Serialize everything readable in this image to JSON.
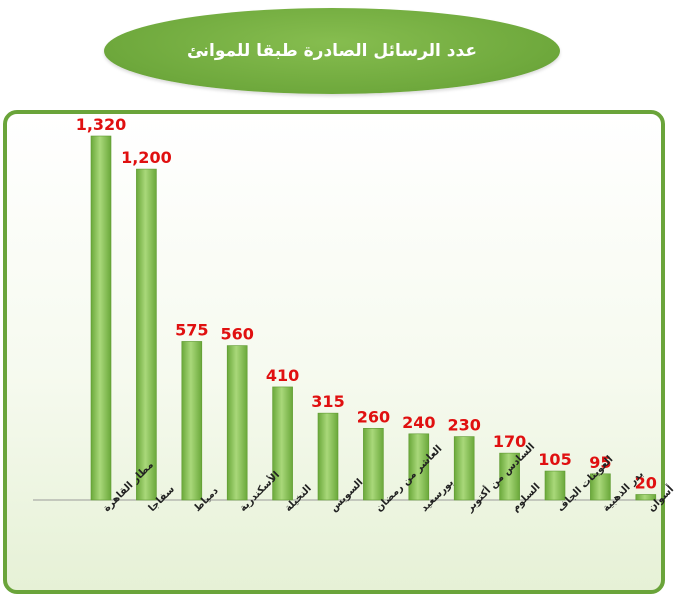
{
  "title": "عدد الرسائل الصادرة طبقا للموانئ",
  "colors": {
    "bar": "#7dbb47",
    "bar_light": "#a9d87a",
    "value_label": "#e01010",
    "frame": "#6aa43a"
  },
  "chart_data": {
    "type": "bar",
    "title": "عدد الرسائل الصادرة طبقا للموانئ",
    "xlabel": "",
    "ylabel": "",
    "ylim": [
      0,
      1320
    ],
    "grid": false,
    "legend": "none",
    "categories": [
      "مطار القاهرة",
      "سفاجا",
      "دمياط",
      "الأسكندرية",
      "النخيلة",
      "السويس",
      "العاشر من رمضان",
      "بورسعيد",
      "السادس من أكتوبر",
      "السلوم",
      "العوينات الجاف",
      "بدر الذهبية",
      "أسوان"
    ],
    "values": [
      1320,
      1200,
      575,
      560,
      410,
      315,
      260,
      240,
      230,
      170,
      105,
      95,
      20
    ],
    "value_labels": [
      "1,320",
      "1,200",
      "575",
      "560",
      "410",
      "315",
      "260",
      "240",
      "230",
      "170",
      "105",
      "95",
      "20"
    ]
  }
}
